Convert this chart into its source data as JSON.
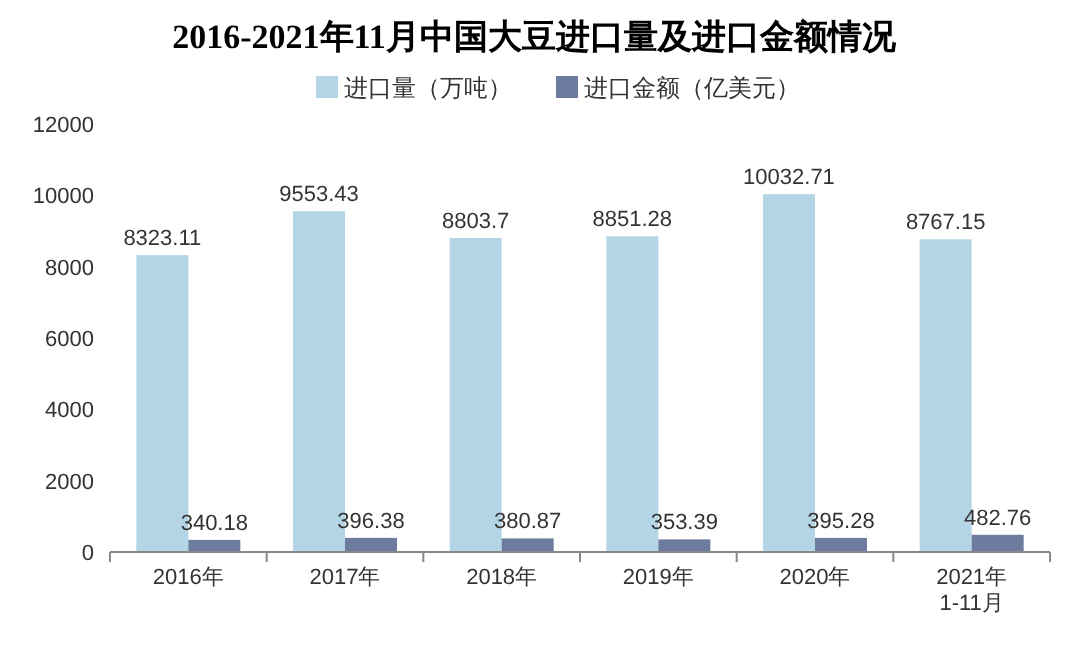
{
  "chart_data": {
    "type": "bar",
    "title": "2016-2021年11月中国大豆进口量及进口金额情况",
    "categories": [
      "2016年",
      "2017年",
      "2018年",
      "2019年",
      "2020年",
      "2021年\n1-11月"
    ],
    "series": [
      {
        "name": "进口量（万吨）",
        "color": "#b4d5e6",
        "values": [
          8323.11,
          9553.43,
          8803.7,
          8851.28,
          10032.71,
          8767.15
        ]
      },
      {
        "name": "进口金额（亿美元）",
        "color": "#6c7b9e",
        "values": [
          340.18,
          396.38,
          380.87,
          353.39,
          395.28,
          482.76
        ]
      }
    ],
    "ylim": [
      0,
      12000
    ],
    "yticks": [
      0,
      2000,
      4000,
      6000,
      8000,
      10000,
      12000
    ],
    "data_labels": true,
    "legend": "top",
    "grid": false
  }
}
